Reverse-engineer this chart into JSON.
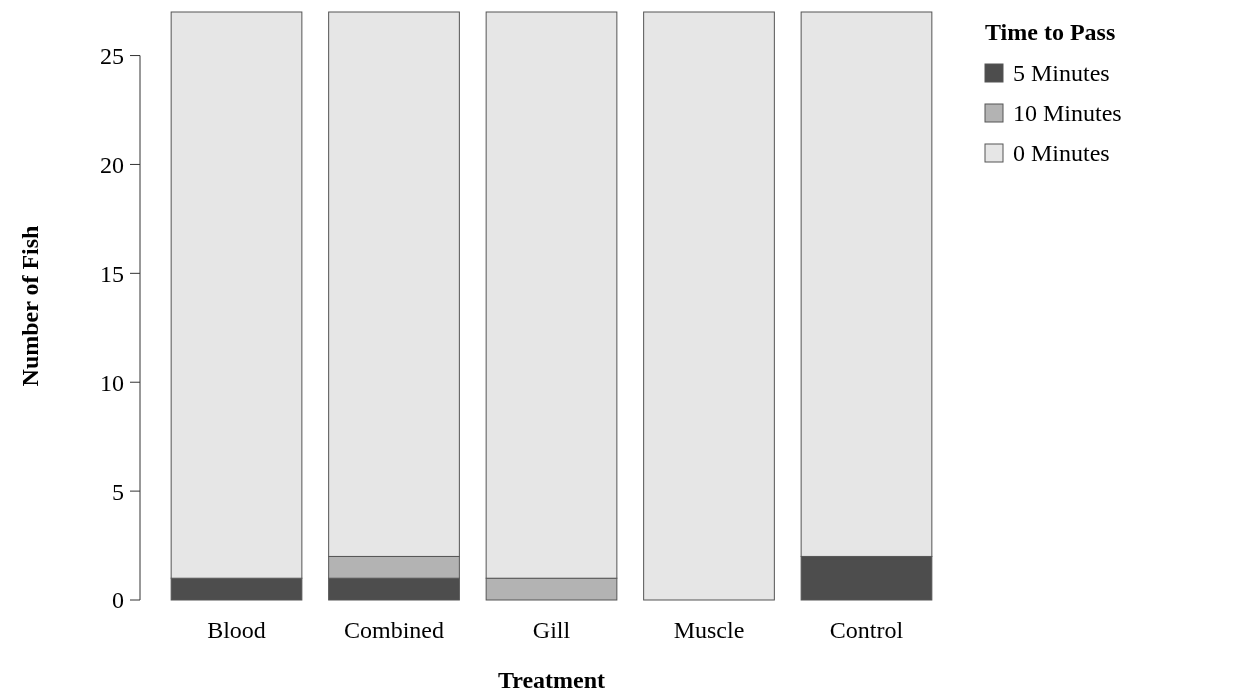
{
  "chart_data": {
    "type": "bar",
    "stacked": true,
    "xlabel": "Treatment",
    "ylabel": "Number of Fish",
    "legend_title": "Time to Pass",
    "legend": "right",
    "categories": [
      "Blood",
      "Combined",
      "Gill",
      "Muscle",
      "Control"
    ],
    "series": [
      {
        "name": "5 Minutes",
        "color": "#4d4d4d",
        "values": [
          1,
          1,
          0,
          0,
          2
        ]
      },
      {
        "name": "10 Minutes",
        "color": "#b3b3b3",
        "values": [
          0,
          1,
          1,
          0,
          0
        ]
      },
      {
        "name": "0 Minutes",
        "color": "#e6e6e6",
        "values": [
          26,
          25,
          26,
          27,
          25
        ]
      }
    ],
    "ylim": [
      0,
      27
    ],
    "yticks": [
      0,
      5,
      10,
      15,
      20,
      25
    ]
  }
}
